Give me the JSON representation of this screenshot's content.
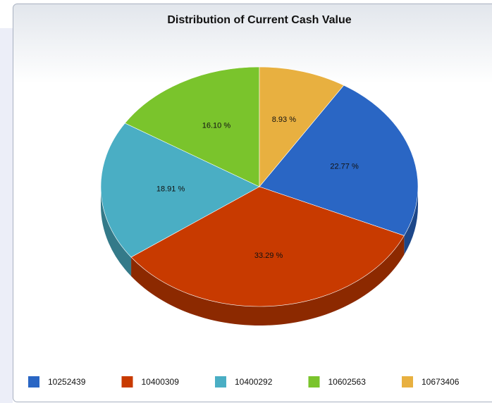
{
  "chart_data": {
    "type": "pie",
    "title": "Distribution of Current Cash Value",
    "categories": [
      "10252439",
      "10400309",
      "10400292",
      "10602563",
      "10673406"
    ],
    "values": [
      22.77,
      33.29,
      18.91,
      16.1,
      8.93
    ],
    "value_labels": [
      "22.77 %",
      "33.29 %",
      "18.91 %",
      "16.10 %",
      "8.93 %"
    ],
    "colors": [
      "#2a66c4",
      "#c83a00",
      "#4aaec4",
      "#7ac42c",
      "#e8b040"
    ],
    "legend": "bottom"
  }
}
